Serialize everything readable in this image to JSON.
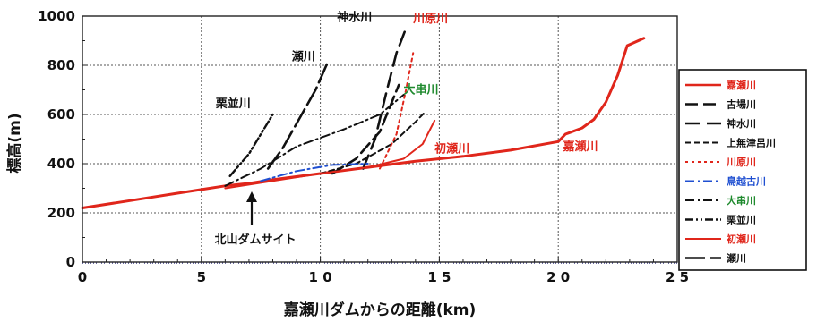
{
  "chart_data": {
    "type": "line",
    "title": "",
    "xlabel": "嘉瀬川ダムからの距離(km)",
    "ylabel": "標高(m)",
    "xlim": [
      0,
      25
    ],
    "ylim": [
      0,
      1000
    ],
    "x_ticks": [
      0,
      5,
      10,
      15,
      20,
      25
    ],
    "x_tick_labels": [
      "0",
      "5",
      "1 0",
      "1 5",
      "2 0",
      "2 5"
    ],
    "y_ticks": [
      0,
      200,
      400,
      600,
      800,
      1000
    ],
    "y_tick_labels": [
      "0",
      "200",
      "400",
      "600",
      "800",
      "1000"
    ],
    "grid": true,
    "legend_position": "right",
    "annotation": {
      "text": "北山ダムサイト",
      "x": 7,
      "y": 320
    },
    "series": [
      {
        "name": "嘉瀬川",
        "color": "#e0261b",
        "dash": "",
        "width": 3,
        "label": "嘉瀬川",
        "label_color": "#e0261b",
        "label_at": [
          20.2,
          455
        ],
        "x": [
          0,
          2,
          4,
          5,
          6,
          7,
          8,
          10,
          12,
          14,
          16,
          18,
          20,
          20.3,
          21,
          21.5,
          22,
          22.5,
          22.9,
          23.6
        ],
        "y": [
          220,
          250,
          280,
          295,
          310,
          320,
          335,
          360,
          385,
          410,
          430,
          455,
          490,
          520,
          545,
          580,
          650,
          760,
          880,
          910
        ]
      },
      {
        "name": "古場川",
        "color": "#111111",
        "dash": "14,6",
        "width": 2.6,
        "x": [
          10.5,
          11.5,
          12.5,
          13.3
        ],
        "y": [
          360,
          420,
          530,
          720
        ]
      },
      {
        "name": "神水川",
        "color": "#111111",
        "dash": "16,8",
        "width": 2.6,
        "label": "神水川",
        "label_color": "#111111",
        "label_at": [
          10.7,
          980
        ],
        "x": [
          11.8,
          12.3,
          12.8,
          13.2,
          13.6
        ],
        "y": [
          380,
          500,
          700,
          850,
          950
        ]
      },
      {
        "name": "上無津呂川",
        "color": "#111111",
        "dash": "6,4",
        "width": 2,
        "x": [
          10,
          11.5,
          13,
          14,
          14.4
        ],
        "y": [
          360,
          400,
          480,
          570,
          610
        ]
      },
      {
        "name": "川原川",
        "color": "#e0261b",
        "dash": "3,4",
        "width": 2,
        "label": "川原川",
        "label_color": "#e0261b",
        "label_at": [
          13.9,
          975
        ],
        "x": [
          12.5,
          13.2,
          13.6,
          13.9
        ],
        "y": [
          380,
          520,
          700,
          850
        ]
      },
      {
        "name": "鳥越古川",
        "color": "#1f4fd1",
        "dash": "10,4,2,4",
        "width": 2,
        "x": [
          7.5,
          9,
          10.5,
          12
        ],
        "y": [
          330,
          370,
          395,
          400
        ]
      },
      {
        "name": "大串川",
        "color": "#111111",
        "dash": "10,4,2,4",
        "width": 2,
        "label": "大串川",
        "label_color": "#1f8a2e",
        "label_at": [
          13.5,
          685
        ],
        "x": [
          6,
          7.5,
          9,
          11,
          12.5,
          13.5
        ],
        "y": [
          310,
          380,
          470,
          540,
          600,
          680
        ]
      },
      {
        "name": "栗並川",
        "color": "#111111",
        "dash": "9,3,2,3,2,3",
        "width": 2.4,
        "label": "栗並川",
        "label_color": "#111111",
        "label_at": [
          5.6,
          630
        ],
        "x": [
          6.2,
          7,
          7.5,
          8
        ],
        "y": [
          350,
          440,
          520,
          600
        ]
      },
      {
        "name": "初瀬川",
        "color": "#e0261b",
        "dash": "",
        "width": 2,
        "label": "初瀬川",
        "label_color": "#e0261b",
        "label_at": [
          14.8,
          445
        ],
        "x": [
          6,
          8,
          10,
          12,
          13.5,
          14.3,
          14.8
        ],
        "y": [
          300,
          330,
          360,
          385,
          420,
          480,
          575
        ]
      },
      {
        "name": "瀬川",
        "color": "#111111",
        "dash": "22,6",
        "width": 2.6,
        "label": "瀬川",
        "label_color": "#111111",
        "label_at": [
          8.8,
          820
        ],
        "x": [
          7.8,
          8.4,
          9.1,
          9.8,
          10.3
        ],
        "y": [
          380,
          460,
          580,
          700,
          810
        ]
      }
    ]
  }
}
